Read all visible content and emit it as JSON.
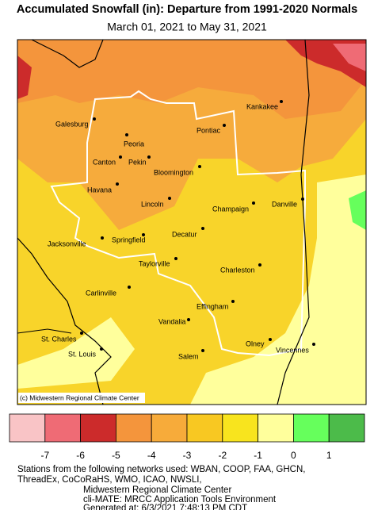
{
  "title": "Accumulated Snowfall (in): Departure from 1991-2020 Normals",
  "subtitle": "March 01, 2021 to May 31, 2021",
  "cities": [
    "Galesburg",
    "Peoria",
    "Canton",
    "Pekin",
    "Bloomington",
    "Pontiac",
    "Kankakee",
    "Havana",
    "Lincoln",
    "Champaign",
    "Danville",
    "Springfield",
    "Jacksonville",
    "Decatur",
    "Taylorville",
    "Charleston",
    "Carlinville",
    "Effingham",
    "Vandalia",
    "St. Charles",
    "Olney",
    "Vincennes",
    "St. Louis",
    "Salem"
  ],
  "credit": "(c) Midwestern Regional Climate Center",
  "legend": {
    "colors": [
      "#f9c4c6",
      "#ef6b75",
      "#cc2b2b",
      "#f4953c",
      "#f7ab3a",
      "#f8c822",
      "#f8e41e",
      "#ffff9c",
      "#66ff5c",
      "#4cbb4a"
    ],
    "ticks": [
      -7,
      -6,
      -5,
      -4,
      -3,
      -2,
      -1,
      0,
      1
    ]
  },
  "footer": [
    "Stations from the following networks used: WBAN, COOP, FAA, GHCN,",
    "ThreadEx, CoCoRaHS, WMO, ICAO, NWSLI,",
    "Midwestern Regional Climate Center",
    "cli-MATE: MRCC Application Tools Environment",
    "Generated at: 6/3/2021 7:48:13 PM CDT"
  ]
}
